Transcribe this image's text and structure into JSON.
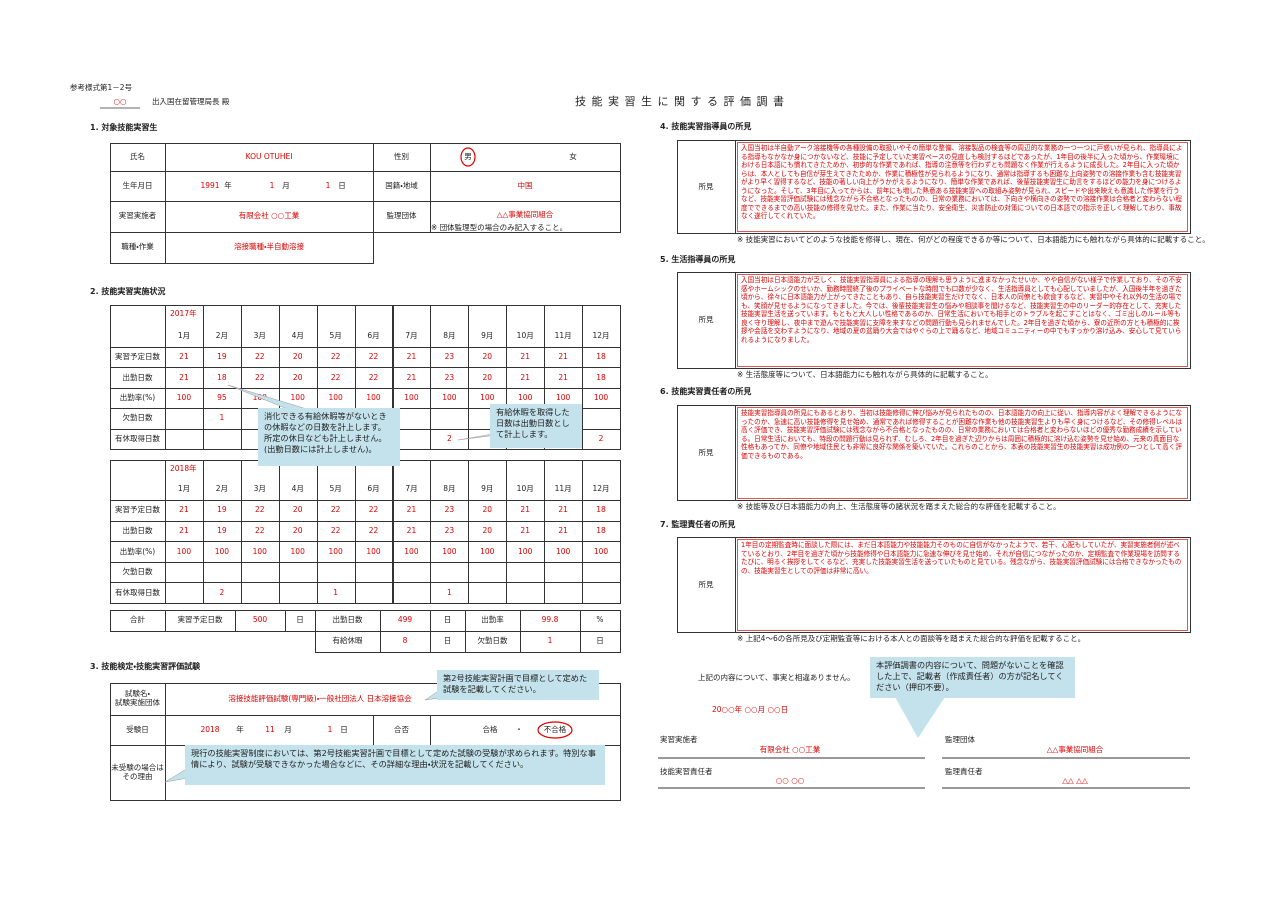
{
  "header": {
    "form_no": "参考様式第1－2号",
    "addressee": "○○",
    "addressee_title": "出入国在留管理局長 殿",
    "title": "技 能 実 習 生 に 関 す る 評 価 調 書"
  },
  "units": {
    "year": "年",
    "month": "月",
    "day": "日"
  },
  "section1": {
    "heading": "1. 対象技能実習生",
    "name_label": "氏名",
    "name": "KOU OTUHEI",
    "sex_label": "性別",
    "sex_male": "男",
    "sex_female": "女",
    "birth_label": "生年月日",
    "birth_year": 1991,
    "birth_month": 1,
    "birth_day": 1,
    "nationality_label": "国籍・地域",
    "nationality": "中国",
    "implementer_label": "実習実施者",
    "implementer": "有限会社 ○○工業",
    "supervisor_label": "監理団体",
    "supervisor": "△△事業協同組合",
    "supervisor_note": "※ 団体監理型の場合のみ記入すること。",
    "job_label": "職種・作業",
    "job": "溶接職種・半自動溶接"
  },
  "section2": {
    "heading": "2. 技能実習実施状況",
    "months": [
      "1月",
      "2月",
      "3月",
      "4月",
      "5月",
      "6月",
      "7月",
      "8月",
      "9月",
      "10月",
      "11月",
      "12月"
    ],
    "row_labels": [
      "実習予定日数",
      "出勤日数",
      "出勤率(%)",
      "欠勤日数",
      "有休取得日数"
    ],
    "tables": [
      {
        "year": "2017年",
        "rows": [
          [
            21,
            19,
            22,
            20,
            22,
            22,
            21,
            23,
            20,
            21,
            21,
            18
          ],
          [
            21,
            18,
            22,
            20,
            22,
            22,
            21,
            23,
            20,
            21,
            21,
            18
          ],
          [
            100,
            95,
            100,
            100,
            100,
            100,
            100,
            100,
            100,
            100,
            100,
            100
          ],
          [
            null,
            1,
            null,
            null,
            null,
            null,
            null,
            null,
            null,
            null,
            null,
            null
          ],
          [
            null,
            null,
            null,
            null,
            null,
            null,
            null,
            2,
            null,
            null,
            null,
            2
          ]
        ]
      },
      {
        "year": "2018年",
        "rows": [
          [
            21,
            19,
            22,
            20,
            22,
            22,
            21,
            23,
            20,
            21,
            21,
            18
          ],
          [
            21,
            19,
            22,
            20,
            22,
            22,
            21,
            23,
            20,
            21,
            21,
            18
          ],
          [
            100,
            100,
            100,
            100,
            100,
            100,
            100,
            100,
            100,
            100,
            100,
            100
          ],
          [
            null,
            null,
            null,
            null,
            null,
            null,
            null,
            null,
            null,
            null,
            null,
            null
          ],
          [
            null,
            2,
            null,
            null,
            1,
            null,
            null,
            1,
            null,
            null,
            null,
            null
          ]
        ]
      }
    ],
    "totals": {
      "label": "合計",
      "planned_label": "実習予定日数",
      "planned": 500,
      "attended_label": "出勤日数",
      "attended": 499,
      "rate_label": "出勤率",
      "rate": 99.8,
      "rate_unit": "%",
      "paid_leave_label": "有給休暇",
      "paid_leave": 8,
      "absence_label": "欠勤日数",
      "absence": 1
    }
  },
  "section3": {
    "heading": "3. 技能検定・技能実習評価試験",
    "exam_label": [
      "試験名・",
      "試験実施団体"
    ],
    "exam": "溶接技能評価試験(専門級)・一般社団法人 日本溶接協会",
    "date_label": "受験日",
    "date_year": 2018,
    "date_month": 11,
    "date_day": 1,
    "result_label": "合否",
    "pass": "合格",
    "separator": "・",
    "fail": "不合格",
    "reason_label": [
      "未受験の場合は",
      "その理由"
    ]
  },
  "findings": [
    {
      "heading": "4. 技能実習指導員の所見",
      "label": "所見",
      "text": "入国当初は半自動アーク溶接機等の各種設備の取扱いやその簡単な整備、溶接製品の検査等の周辺的な業務の一つ一つに戸惑いが見られ、指導員による指導もなかなか身につかないなど、技能に予定していた実習ペースの見直しも検討するほどであったが、1年目の後半に入った頃から、作業環境における日本語にも慣れてきたためか、初歩的な作業であれば、指導の注意等を行わずとも問題なく作業が行えるように成長した。2年目に入った頃からは、本人としても自信が芽生えてきたためか、作業に積極性が見られるようになり、通常は指導するも困難な上向姿勢での溶接作業も含む技能実習がより早く習得するなど、技能の著しい向上がうかがえるようになり、簡単な作業であれば、後輩技能実習生に助言をするほどの能力を身につけるようになった。そして、3年目に入ってからは、前年にも増した熱意ある技能実習への取組み姿勢が見られ、スピードや出来映えも意識した作業を行うなど、技能実習評価試験には残念ながら不合格となったものの、日常の業務においては、下向きや横向きの姿勢での溶接作業は合格者と変わらない程度でできるまでの高い技能の修得を見せた。また、作業に当たり、安全衛生、災害防止の対策についての日本語での指示を正しく理解しており、事故なく遂行してくれていた。",
      "note": "※ 技能実習においてどのような技能を修得し、現在、何がどの程度できるか等について、日本語能力にも触れながら具体的に記載すること。"
    },
    {
      "heading": "5. 生活指導員の所見",
      "label": "所見",
      "text": "入国当初は日本語能力が乏しく、技能実習指導員による指導の理解も思うように進まなかったせいか、やや自信がない様子で作業しており、その不安感やホームシックのせいか、勤務時間終了後のプライベートな時間でも口数が少なく、生活指導員としても心配していましたが、入国後半年を過ぎた頃から、徐々に日本語能力が上がってきたこともあり、自ら技能実習生だけでなく、日本人の同僚とも飲食するなど、実習中やそれ以外の生活の場でも、笑顔が見せるようになってきました。今では、後輩技能実習生の悩みや相談事を聞けるなど、技能実習生の中のリーダー的存在として、充実した技能実習生活を送っています。もともと大人しい性格であるのか、日常生活においても相手とのトラブルを起こすことはなく、ゴミ出しのルール等も良く守り理解し、夜中まで遊んで技能実習に支障を来すなどの問題行動も見られませんでした。2年目を過ぎた頃から、寮の近所の方とも積極的に挨拶や会話を交わすようになり、地域の夏の盆踊り大会ではやぐらの上で踊るなど、地域コミュニティーの中でもすっかり溶け込み、安心して見ていられるようになりました。",
      "note": "※ 生活態度等について、日本語能力にも触れながら具体的に記載すること。"
    },
    {
      "heading": "6. 技能実習責任者の所見",
      "label": "所見",
      "text": "技能実習指導員の所見にもあるとおり、当初は技能修得に伸び悩みが見られたものの、日本語能力の向上に従い、指導内容がよく理解できるようになったのか、急速に高い技能修得を見せ始め、通常であれば修得することが困難な作業も他の技能実習生よりも早く身につけるなど、その修得レベルは高く評価でき、技能実習評価試験には残念ながら不合格となったものの、日常の業務においては合格者と変わらないほどの優秀な勤務成績を示している。日常生活においても、特段の問題行動は見られず、むしろ、2年目を過ぎた辺りからは周囲に積極的に溶け込む姿勢を見せ始め、元来の真面目な性格もあってか、同僚や地域住民とも非常に良好な関係を築いていた。これらのことから、本表の技能実習生の技能実習は成功例の一つとして高く評価できるものである。",
      "note": "※ 技能等及び日本語能力の向上、生活態度等の諸状況を踏まえた総合的な評価を記載すること。"
    },
    {
      "heading": "7. 監理責任者の所見",
      "label": "所見",
      "text": "1年目の定期監査時に面談した際には、まだ日本語能力や技能能力そのものに自信がなかったようで、若干、心配もしていたが、実習実施者側が述べているとおり、2年目を過ぎた頃から技能修得や日本語能力に急速な伸びを見せ始め、それが自信につながったのか、定期監査で作業現場を訪問するたびに、明るく挨拶をしてくるなど、充実した技能実習生活を送っていたものと見ている。残念ながら、技能実習評価試験には合格できなかったものの、技能実習生としての評価は非常に高い。",
      "note": "※ 上記4～6の各所見及び定期監査等における本人との面談等を踏まえた総合的な評価を記載すること。"
    }
  ],
  "footer": {
    "statement": "上記の内容について、事実と相違ありません。",
    "date": "20○○年 ○○月 ○○日",
    "signatures": [
      {
        "label": "実習実施者",
        "value": "有限会社 ○○工業"
      },
      {
        "label": "監理団体",
        "value": "△△事業協同組合"
      },
      {
        "label": "技能実習責任者",
        "value": "○○ ○○"
      },
      {
        "label": "監理責任者",
        "value": "△△ △△"
      }
    ]
  },
  "callouts": [
    "消化できる有給休暇等がないときの休暇などの日数を計上します。所定の休日なども計上しません。(出勤日数には計上しません)。",
    "有給休暇を取得した日数は出勤日数として計上します。",
    "第2号技能実習計画で目標として定めた試験を記載してください。",
    "現行の技能実習制度においては、第2号技能実習計画で目標として定めた試験の受験が求められます。特別な事情により、試験が受験できなかった場合などに、その詳細な理由・状況を記載してください。",
    "本評価調書の内容について、問題がないことを確認した上で、記載者（作成責任者）の方が記名してください（押印不要）。"
  ]
}
